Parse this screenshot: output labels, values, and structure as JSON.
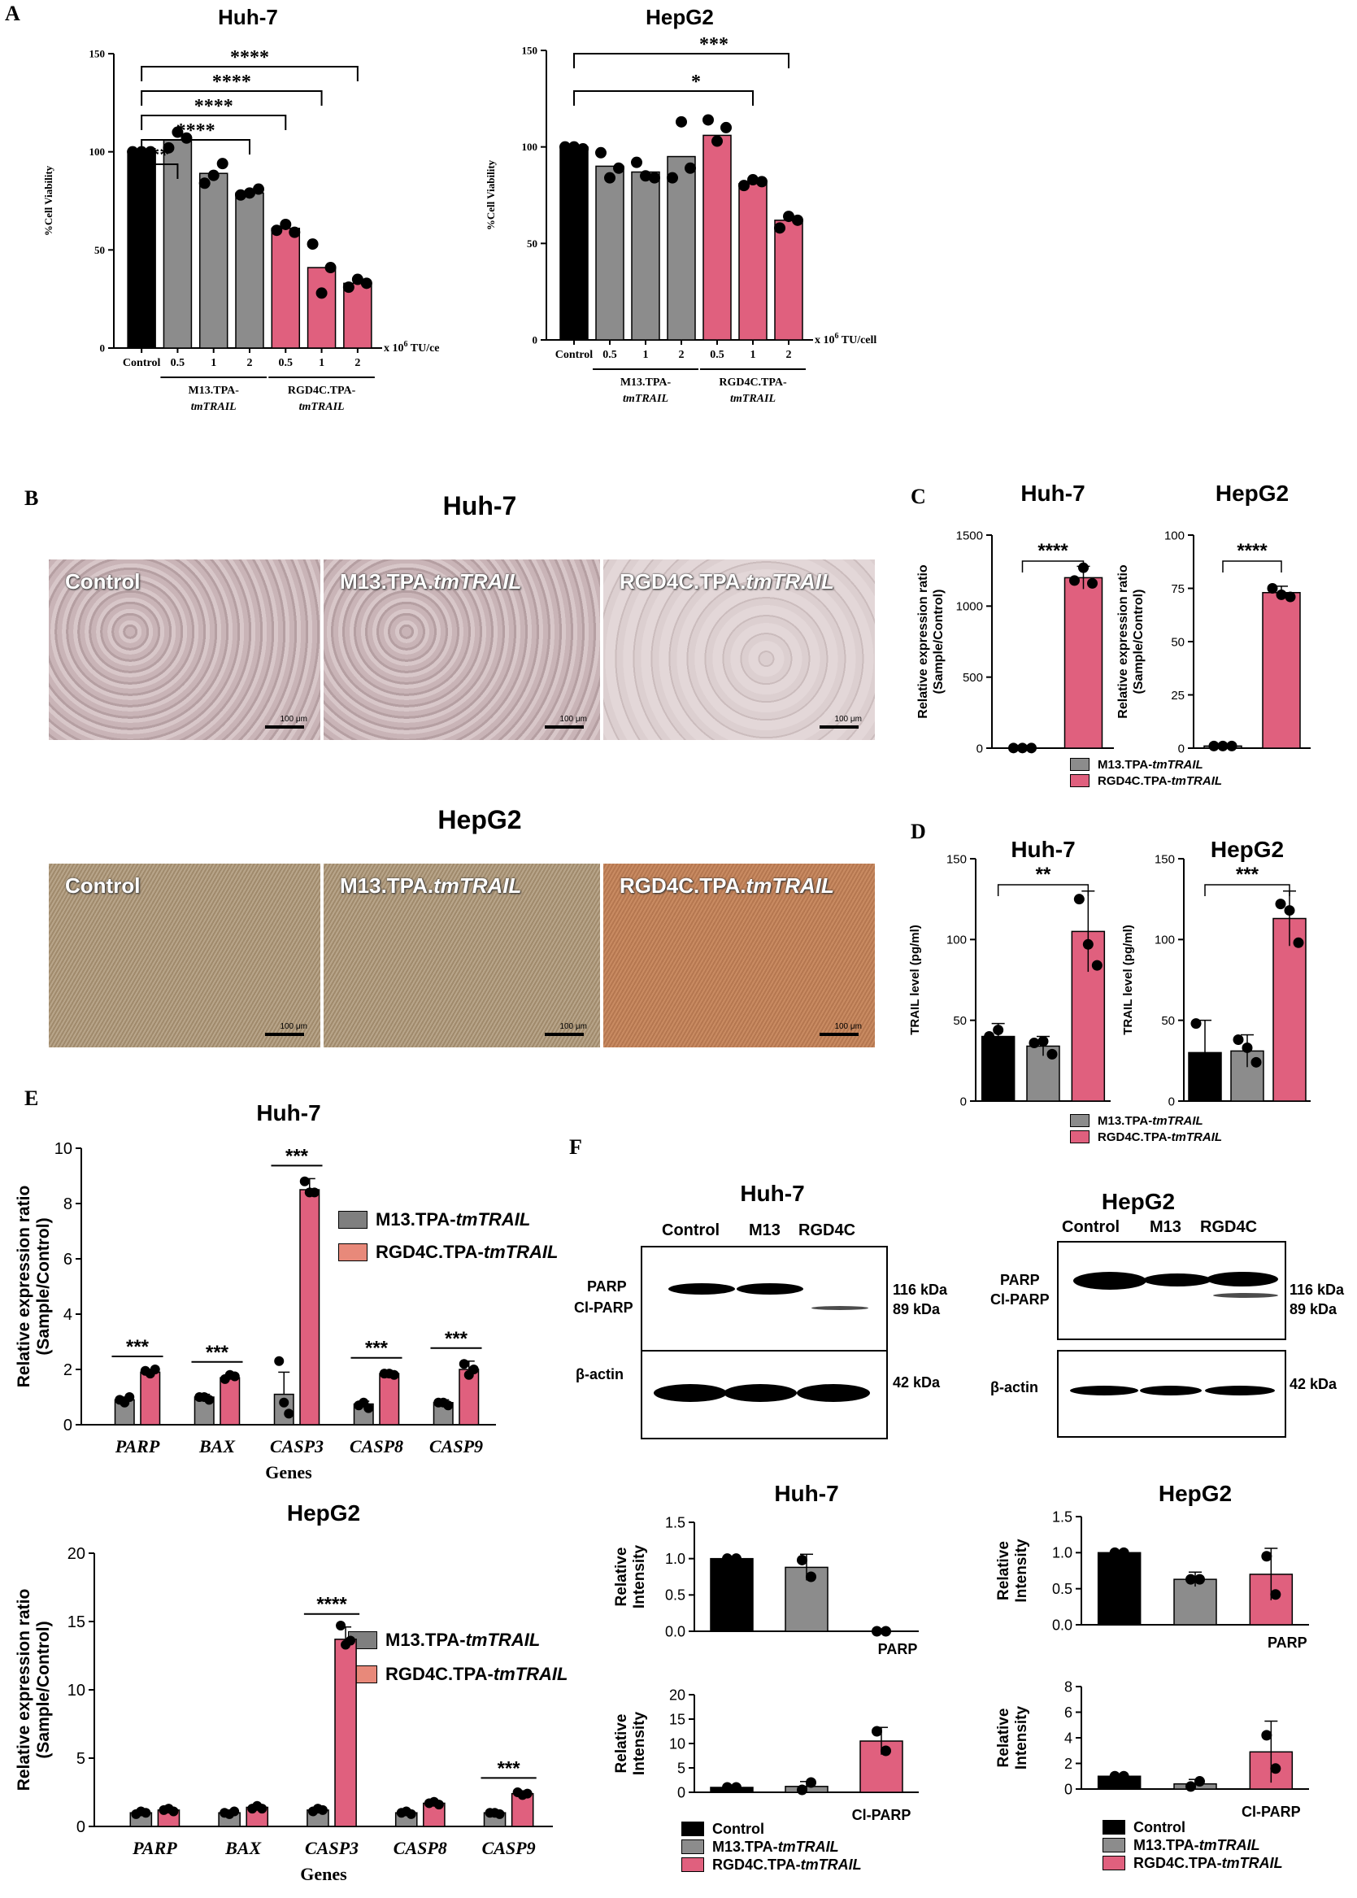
{
  "colors": {
    "control": "#000000",
    "m13": "#8c8c8c",
    "rgd": "#e0607e",
    "rgd_light": "#e8897a",
    "m13_gray": "#7f7f7f"
  },
  "letters": {
    "A": "A",
    "B": "B",
    "C": "C",
    "D": "D",
    "E": "E",
    "F": "F"
  },
  "photos": {
    "huh_title": "Huh-7",
    "hep_title": "HepG2",
    "labels": [
      "Control",
      "M13.TPA.",
      "RGD4C.TPA."
    ],
    "label_italic": "tmTRAIL",
    "scale": "100 μm"
  },
  "blots": {
    "huh_title": "Huh-7",
    "hep_title": "HepG2",
    "lanes": [
      "Control",
      "M13",
      "RGD4C"
    ],
    "parp": "PARP",
    "clparp": "Cl-PARP",
    "actin": "β-actin",
    "kda_116": "116 kDa",
    "kda_89": "89 kDa",
    "kda_42": "42 kDa"
  },
  "legends": {
    "m13_prefix": "M13.TPA-",
    "rgd_prefix": "RGD4C.TPA-",
    "italic": "tmTRAIL",
    "control": "Control"
  },
  "chart_data": [
    {
      "id": "A_huh",
      "type": "bar",
      "title": "Huh-7",
      "ylabel": "%Cell Viability",
      "ylim": [
        0,
        150
      ],
      "yticks": [
        0,
        50,
        100,
        150
      ],
      "categories": [
        "Control",
        "0.5",
        "1",
        "2",
        "0.5",
        "1",
        "2"
      ],
      "values": [
        100,
        106,
        89,
        79,
        61,
        41,
        33
      ],
      "points": [
        [
          100,
          100,
          100
        ],
        [
          102,
          110,
          107
        ],
        [
          84,
          88,
          94
        ],
        [
          78,
          79,
          81
        ],
        [
          60,
          63,
          59
        ],
        [
          53,
          28,
          41
        ],
        [
          31,
          35,
          33
        ]
      ],
      "groups": [
        "control",
        "m13",
        "m13",
        "m13",
        "rgd",
        "rgd",
        "rgd"
      ],
      "unit": "x 10",
      "unit_exp": "6",
      "unit_suffix": " TU/ce",
      "group_labels": [
        {
          "line1": "M13.TPA-",
          "line2": "tmTRAIL"
        },
        {
          "line1": "RGD4C.TPA-",
          "line2": "tmTRAIL"
        }
      ],
      "sig": [
        {
          "to": 1,
          "label": "**"
        },
        {
          "to": 3,
          "label": "****"
        },
        {
          "to": 4,
          "label": "****"
        },
        {
          "to": 5,
          "label": "****"
        },
        {
          "to": 6,
          "label": "****"
        }
      ]
    },
    {
      "id": "A_hep",
      "type": "bar",
      "title": "HepG2",
      "ylabel": "%Cell Viability",
      "ylim": [
        0,
        150
      ],
      "yticks": [
        0,
        50,
        100,
        150
      ],
      "categories": [
        "Control",
        "0.5",
        "1",
        "2",
        "0.5",
        "1",
        "2"
      ],
      "values": [
        100,
        90,
        87,
        95,
        106,
        81,
        62
      ],
      "points": [
        [
          100,
          100,
          99
        ],
        [
          97,
          84,
          89
        ],
        [
          92,
          85,
          84
        ],
        [
          84,
          113,
          89
        ],
        [
          114,
          103,
          110
        ],
        [
          80,
          83,
          82
        ],
        [
          58,
          64,
          62
        ]
      ],
      "groups": [
        "control",
        "m13",
        "m13",
        "m13",
        "rgd",
        "rgd",
        "rgd"
      ],
      "unit": "x 10",
      "unit_exp": "6",
      "unit_suffix": " TU/cell",
      "group_labels": [
        {
          "line1": "M13.TPA-",
          "line2": "tmTRAIL"
        },
        {
          "line1": "RGD4C.TPA-",
          "line2": "tmTRAIL"
        }
      ],
      "sig": [
        {
          "to": 5,
          "label": "*"
        },
        {
          "to": 6,
          "label": "***"
        }
      ]
    },
    {
      "id": "C_huh",
      "type": "bar",
      "title": "Huh-7",
      "ylabel": "Relative expression ratio",
      "ylabel2": "(Sample/Control)",
      "ylim": [
        0,
        1500
      ],
      "yticks": [
        0,
        500,
        1000,
        1500
      ],
      "categories": [
        "M13.TPA-tmTRAIL",
        "RGD4C.TPA-tmTRAIL"
      ],
      "values": [
        1,
        1200
      ],
      "points": [
        [
          1,
          1,
          1
        ],
        [
          1180,
          1270,
          1160
        ]
      ],
      "groups": [
        "m13",
        "rgd"
      ],
      "errors": [
        0,
        80
      ],
      "sig": [
        {
          "from": 0,
          "to": 1,
          "label": "****"
        }
      ]
    },
    {
      "id": "C_hep",
      "type": "bar",
      "title": "HepG2",
      "ylabel": "Relative expression ratio",
      "ylabel2": "(Sample/Control)",
      "ylim": [
        0,
        100
      ],
      "yticks": [
        0,
        25,
        50,
        75,
        100
      ],
      "categories": [
        "M13.TPA-tmTRAIL",
        "RGD4C.TPA-tmTRAIL"
      ],
      "values": [
        1,
        73
      ],
      "points": [
        [
          1,
          1,
          1
        ],
        [
          75,
          72,
          71
        ]
      ],
      "groups": [
        "m13",
        "rgd"
      ],
      "errors": [
        0,
        3
      ],
      "sig": [
        {
          "from": 0,
          "to": 1,
          "label": "****"
        }
      ]
    },
    {
      "id": "D_huh",
      "type": "bar",
      "title": "Huh-7",
      "ylabel": "TRAIL level (pg/ml)",
      "ylim": [
        0,
        150
      ],
      "yticks": [
        0,
        50,
        100,
        150
      ],
      "categories": [
        "Control",
        "M13.TPA-tmTRAIL",
        "RGD4C.TPA-tmTRAIL"
      ],
      "values": [
        40,
        34,
        105
      ],
      "points": [
        [
          40,
          44,
          36
        ],
        [
          36,
          37,
          29
        ],
        [
          125,
          97,
          84
        ]
      ],
      "groups": [
        "control",
        "m13",
        "rgd"
      ],
      "errors": [
        8,
        6,
        25
      ],
      "sig": [
        {
          "from": 0,
          "to": 2,
          "label": "**"
        }
      ]
    },
    {
      "id": "D_hep",
      "type": "bar",
      "title": "HepG2",
      "ylabel": "TRAIL level (pg/ml)",
      "ylim": [
        0,
        150
      ],
      "yticks": [
        0,
        50,
        100,
        150
      ],
      "categories": [
        "Control",
        "M13.TPA-tmTRAIL",
        "RGD4C.TPA-tmTRAIL"
      ],
      "values": [
        30,
        31,
        113
      ],
      "points": [
        [
          48,
          20,
          22
        ],
        [
          38,
          33,
          24
        ],
        [
          122,
          118,
          98
        ]
      ],
      "groups": [
        "control",
        "m13",
        "rgd"
      ],
      "errors": [
        20,
        10,
        17
      ],
      "sig": [
        {
          "from": 0,
          "to": 2,
          "label": "***"
        }
      ]
    },
    {
      "id": "E_huh",
      "type": "bar",
      "title": "Huh-7",
      "ylabel": "Relative expression ratio",
      "ylabel2": "(Sample/Control)",
      "xlabel": "Genes",
      "ylim": [
        0,
        10
      ],
      "yticks": [
        0,
        2,
        4,
        6,
        8,
        10
      ],
      "categories": [
        "PARP",
        "BAX",
        "CASP3",
        "CASP8",
        "CASP9"
      ],
      "series": [
        {
          "name": "M13.TPA-tmTRAIL",
          "values": [
            0.9,
            1.0,
            1.1,
            0.75,
            0.8
          ],
          "errors": [
            0.1,
            0.1,
            0.8,
            0.1,
            0.1
          ],
          "points": [
            [
              0.9,
              0.8,
              1.0
            ],
            [
              1.0,
              1.0,
              0.9
            ],
            [
              2.3,
              0.8,
              0.4
            ],
            [
              0.7,
              0.8,
              0.6
            ],
            [
              0.8,
              0.8,
              0.7
            ]
          ]
        },
        {
          "name": "RGD4C.TPA-tmTRAIL",
          "values": [
            1.9,
            1.7,
            8.5,
            1.85,
            2.0
          ],
          "errors": [
            0.1,
            0.1,
            0.4,
            0.1,
            0.3
          ],
          "points": [
            [
              1.95,
              1.85,
              2.0
            ],
            [
              1.65,
              1.8,
              1.75
            ],
            [
              8.8,
              8.4,
              8.4
            ],
            [
              1.85,
              1.85,
              1.8
            ],
            [
              2.2,
              1.8,
              2.0
            ]
          ]
        }
      ],
      "sig": [
        {
          "cat": 0,
          "label": "***"
        },
        {
          "cat": 1,
          "label": "***"
        },
        {
          "cat": 2,
          "label": "***"
        },
        {
          "cat": 3,
          "label": "***"
        },
        {
          "cat": 4,
          "label": "***"
        }
      ]
    },
    {
      "id": "E_hep",
      "type": "bar",
      "title": "HepG2",
      "ylabel": "Relative expression ratio",
      "ylabel2": "(Sample/Control)",
      "xlabel": "Genes",
      "ylim": [
        0,
        20
      ],
      "yticks": [
        0,
        5,
        10,
        15,
        20
      ],
      "categories": [
        "PARP",
        "BAX",
        "CASP3",
        "CASP8",
        "CASP9"
      ],
      "series": [
        {
          "name": "M13.TPA-tmTRAIL",
          "values": [
            1.0,
            1.0,
            1.2,
            1.0,
            1.0
          ],
          "errors": [
            0.1,
            0.1,
            0.1,
            0.1,
            0.1
          ],
          "points": [
            [
              0.9,
              1.1,
              1.0
            ],
            [
              1.0,
              0.9,
              1.1
            ],
            [
              1.1,
              1.3,
              1.2
            ],
            [
              1.0,
              1.1,
              0.9
            ],
            [
              1.0,
              1.0,
              0.9
            ]
          ]
        },
        {
          "name": "RGD4C.TPA-tmTRAIL",
          "values": [
            1.2,
            1.4,
            13.7,
            1.7,
            2.4
          ],
          "errors": [
            0.1,
            0.1,
            0.9,
            0.1,
            0.2
          ],
          "points": [
            [
              1.2,
              1.3,
              1.1
            ],
            [
              1.3,
              1.5,
              1.3
            ],
            [
              14.7,
              13.3,
              13.6
            ],
            [
              1.7,
              1.8,
              1.6
            ],
            [
              2.5,
              2.3,
              2.4
            ]
          ]
        }
      ],
      "sig": [
        {
          "cat": 2,
          "label": "****"
        },
        {
          "cat": 4,
          "label": "***"
        }
      ]
    },
    {
      "id": "F_huh_parp",
      "type": "bar",
      "title": "Huh-7",
      "ylabel": "Relative",
      "ylabel2": "Intensity",
      "xnote": "PARP",
      "ylim": [
        0,
        1.5
      ],
      "yticks": [
        0.0,
        0.5,
        1.0,
        1.5
      ],
      "tickfmt": 1,
      "categories": [
        "Control",
        "M13.TPA-tmTRAIL",
        "RGD4C.TPA-tmTRAIL"
      ],
      "values": [
        1.0,
        0.88,
        0.0
      ],
      "points": [
        [
          1.0,
          1.0
        ],
        [
          0.98,
          0.75
        ],
        [
          0.0,
          0.0
        ]
      ],
      "groups": [
        "control",
        "m13",
        "rgd"
      ],
      "errors": [
        0,
        0.18,
        0
      ]
    },
    {
      "id": "F_hep_parp",
      "type": "bar",
      "title": "HepG2",
      "ylabel": "Relative",
      "ylabel2": "Intensity",
      "xnote": "PARP",
      "ylim": [
        0,
        1.5
      ],
      "yticks": [
        0.0,
        0.5,
        1.0,
        1.5
      ],
      "tickfmt": 1,
      "categories": [
        "Control",
        "M13.TPA-tmTRAIL",
        "RGD4C.TPA-tmTRAIL"
      ],
      "values": [
        1.0,
        0.63,
        0.7
      ],
      "points": [
        [
          1.0,
          1.0
        ],
        [
          0.63,
          0.63
        ],
        [
          0.95,
          0.42
        ]
      ],
      "groups": [
        "control",
        "m13",
        "rgd"
      ],
      "errors": [
        0,
        0.1,
        0.36
      ]
    },
    {
      "id": "F_huh_cl",
      "type": "bar",
      "ylabel": "Relative",
      "ylabel2": "Intensity",
      "xnote": "Cl-PARP",
      "ylim": [
        0,
        20
      ],
      "yticks": [
        0,
        5,
        10,
        15,
        20
      ],
      "categories": [
        "Control",
        "M13.TPA-tmTRAIL",
        "RGD4C.TPA-tmTRAIL"
      ],
      "values": [
        1,
        1.2,
        10.5
      ],
      "points": [
        [
          1,
          1
        ],
        [
          0.5,
          2.0
        ],
        [
          12.5,
          8.5
        ]
      ],
      "groups": [
        "control",
        "m13",
        "rgd"
      ],
      "errors": [
        0,
        1.0,
        2.8
      ]
    },
    {
      "id": "F_hep_cl",
      "type": "bar",
      "ylabel": "Relative",
      "ylabel2": "Intensity",
      "xnote": "Cl-PARP",
      "ylim": [
        0,
        8
      ],
      "yticks": [
        0,
        2,
        4,
        6,
        8
      ],
      "categories": [
        "Control",
        "M13.TPA-tmTRAIL",
        "RGD4C.TPA-tmTRAIL"
      ],
      "values": [
        1,
        0.4,
        2.9
      ],
      "points": [
        [
          1,
          1
        ],
        [
          0.2,
          0.6
        ],
        [
          4.2,
          1.6
        ]
      ],
      "groups": [
        "control",
        "m13",
        "rgd"
      ],
      "errors": [
        0,
        0.35,
        2.4
      ]
    }
  ]
}
